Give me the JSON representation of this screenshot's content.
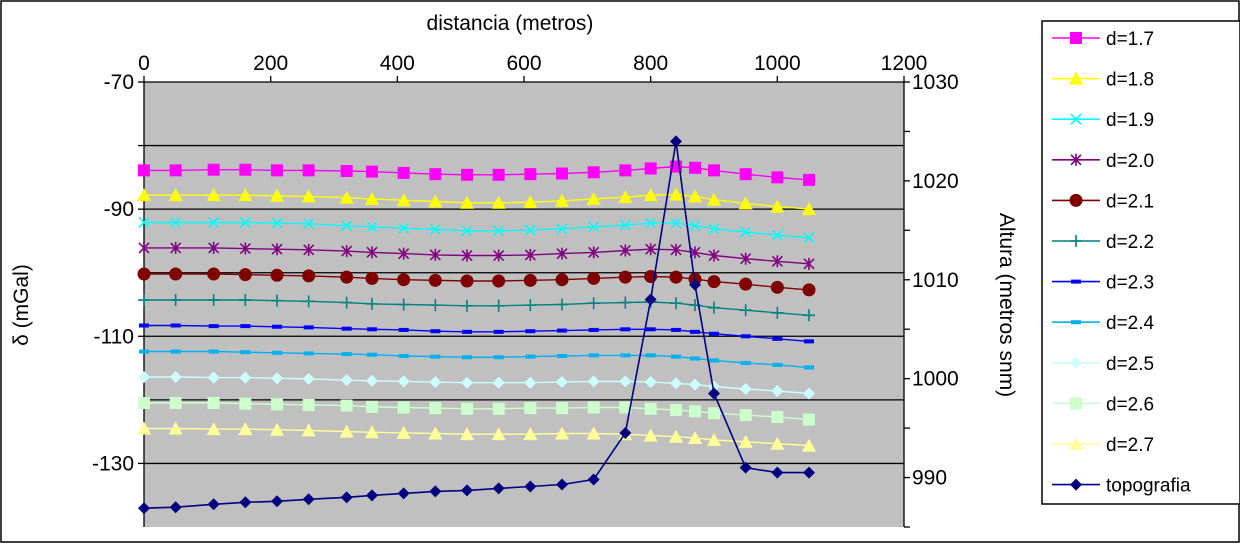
{
  "chart_data": {
    "type": "line",
    "title": "",
    "x_axis": {
      "label": "distancia (metros)",
      "range": [
        0,
        1200
      ],
      "ticks": [
        0,
        200,
        400,
        600,
        800,
        1000,
        1200
      ],
      "position": "top"
    },
    "y_axis_left": {
      "label": "δ (mGal)",
      "range": [
        -140,
        -70
      ],
      "ticks": [
        -70,
        -90,
        -110,
        -130
      ]
    },
    "y_axis_right": {
      "label": "Altura (metros snm)",
      "range": [
        985,
        1030
      ],
      "ticks": [
        990,
        1000,
        1010,
        1020,
        1030
      ]
    },
    "grid": true,
    "plot_background": "#c0c0c0",
    "legend_position": "right",
    "x": [
      0,
      50,
      110,
      160,
      210,
      260,
      320,
      360,
      410,
      460,
      510,
      560,
      610,
      660,
      710,
      760,
      800,
      840,
      870,
      900,
      950,
      1000,
      1050
    ],
    "series": [
      {
        "name": "d=1.7",
        "axis": "left",
        "color": "#ff00ff",
        "marker": "square",
        "values": [
          -83.9,
          -83.9,
          -83.8,
          -83.8,
          -83.9,
          -83.9,
          -84.0,
          -84.1,
          -84.3,
          -84.5,
          -84.6,
          -84.6,
          -84.5,
          -84.4,
          -84.2,
          -83.9,
          -83.6,
          -83.3,
          -83.5,
          -83.9,
          -84.5,
          -85.0,
          -85.4
        ]
      },
      {
        "name": "d=1.8",
        "axis": "left",
        "color": "#ffff00",
        "marker": "triangle",
        "values": [
          -87.8,
          -87.8,
          -87.8,
          -87.8,
          -87.9,
          -88.0,
          -88.2,
          -88.4,
          -88.6,
          -88.8,
          -89.0,
          -89.0,
          -88.9,
          -88.7,
          -88.4,
          -88.1,
          -87.8,
          -87.7,
          -88.0,
          -88.5,
          -89.1,
          -89.6,
          -90.0
        ]
      },
      {
        "name": "d=1.9",
        "axis": "left",
        "color": "#00ffff",
        "marker": "x",
        "values": [
          -92.1,
          -92.1,
          -92.1,
          -92.1,
          -92.2,
          -92.3,
          -92.6,
          -92.8,
          -93.0,
          -93.2,
          -93.4,
          -93.4,
          -93.3,
          -93.1,
          -92.8,
          -92.5,
          -92.2,
          -92.2,
          -92.6,
          -93.1,
          -93.6,
          -94.1,
          -94.5
        ]
      },
      {
        "name": "d=2.0",
        "axis": "left",
        "color": "#800080",
        "marker": "star",
        "values": [
          -96.1,
          -96.1,
          -96.1,
          -96.2,
          -96.3,
          -96.4,
          -96.6,
          -96.8,
          -97.0,
          -97.2,
          -97.3,
          -97.3,
          -97.2,
          -97.0,
          -96.8,
          -96.5,
          -96.3,
          -96.4,
          -96.8,
          -97.3,
          -97.8,
          -98.2,
          -98.6
        ]
      },
      {
        "name": "d=2.1",
        "axis": "left",
        "color": "#800000",
        "marker": "circle",
        "values": [
          -100.2,
          -100.2,
          -100.2,
          -100.3,
          -100.4,
          -100.5,
          -100.7,
          -100.9,
          -101.1,
          -101.2,
          -101.3,
          -101.3,
          -101.2,
          -101.1,
          -100.9,
          -100.7,
          -100.6,
          -100.7,
          -101.0,
          -101.4,
          -101.8,
          -102.3,
          -102.7
        ]
      },
      {
        "name": "d=2.2",
        "axis": "left",
        "color": "#008080",
        "marker": "plus",
        "values": [
          -104.3,
          -104.3,
          -104.3,
          -104.3,
          -104.4,
          -104.5,
          -104.7,
          -104.9,
          -105.0,
          -105.1,
          -105.2,
          -105.2,
          -105.1,
          -105.0,
          -104.8,
          -104.7,
          -104.6,
          -104.8,
          -105.1,
          -105.5,
          -105.9,
          -106.3,
          -106.7
        ]
      },
      {
        "name": "d=2.3",
        "axis": "left",
        "color": "#0000ff",
        "marker": "dash",
        "values": [
          -108.3,
          -108.3,
          -108.4,
          -108.4,
          -108.5,
          -108.6,
          -108.8,
          -108.9,
          -109.0,
          -109.2,
          -109.3,
          -109.3,
          -109.2,
          -109.1,
          -109.0,
          -108.9,
          -108.9,
          -109.0,
          -109.3,
          -109.6,
          -110.0,
          -110.4,
          -110.8
        ]
      },
      {
        "name": "d=2.4",
        "axis": "left",
        "color": "#00b0f0",
        "marker": "dash",
        "values": [
          -112.4,
          -112.4,
          -112.4,
          -112.5,
          -112.6,
          -112.7,
          -112.8,
          -112.9,
          -113.1,
          -113.2,
          -113.3,
          -113.3,
          -113.2,
          -113.1,
          -113.0,
          -113.0,
          -113.0,
          -113.2,
          -113.5,
          -113.8,
          -114.2,
          -114.5,
          -114.9
        ]
      },
      {
        "name": "d=2.5",
        "axis": "left",
        "color": "#ccffff",
        "marker": "diamond",
        "values": [
          -116.4,
          -116.4,
          -116.5,
          -116.5,
          -116.6,
          -116.7,
          -116.9,
          -117.0,
          -117.1,
          -117.2,
          -117.3,
          -117.3,
          -117.3,
          -117.2,
          -117.1,
          -117.1,
          -117.2,
          -117.4,
          -117.6,
          -117.9,
          -118.3,
          -118.6,
          -119.0
        ]
      },
      {
        "name": "d=2.6",
        "axis": "left",
        "color": "#ccffcc",
        "marker": "square",
        "values": [
          -120.5,
          -120.5,
          -120.5,
          -120.6,
          -120.7,
          -120.8,
          -120.9,
          -121.1,
          -121.2,
          -121.3,
          -121.4,
          -121.4,
          -121.3,
          -121.3,
          -121.2,
          -121.2,
          -121.4,
          -121.6,
          -121.8,
          -122.1,
          -122.4,
          -122.7,
          -123.1
        ]
      },
      {
        "name": "d=2.7",
        "axis": "left",
        "color": "#ffff99",
        "marker": "triangle",
        "values": [
          -124.5,
          -124.5,
          -124.6,
          -124.6,
          -124.7,
          -124.8,
          -125.0,
          -125.1,
          -125.2,
          -125.3,
          -125.4,
          -125.4,
          -125.4,
          -125.3,
          -125.3,
          -125.4,
          -125.6,
          -125.8,
          -126.0,
          -126.3,
          -126.6,
          -126.9,
          -127.2
        ]
      },
      {
        "name": "topografia",
        "axis": "right",
        "color": "#000080",
        "marker": "diamond",
        "values": [
          986.9,
          987.0,
          987.3,
          987.5,
          987.6,
          987.8,
          988.0,
          988.2,
          988.4,
          988.6,
          988.7,
          988.9,
          989.1,
          989.3,
          989.8,
          994.5,
          1008.0,
          1024.0,
          1009.5,
          998.5,
          991.0,
          990.5,
          990.5
        ]
      }
    ]
  }
}
